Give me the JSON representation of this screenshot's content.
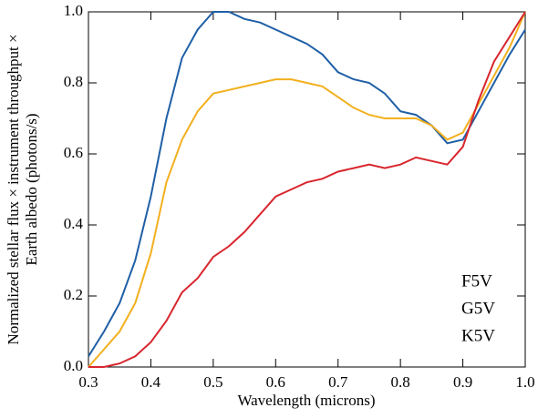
{
  "chart_data": {
    "type": "line",
    "xlabel": "Wavelength (microns)",
    "ylabel": [
      "Normalized stellar flux × instrument throughput ×",
      "Earth albedo (photons/s)"
    ],
    "x": [
      0.3,
      0.325,
      0.35,
      0.375,
      0.4,
      0.425,
      0.45,
      0.475,
      0.5,
      0.525,
      0.55,
      0.575,
      0.6,
      0.625,
      0.65,
      0.675,
      0.7,
      0.725,
      0.75,
      0.775,
      0.8,
      0.825,
      0.85,
      0.875,
      0.9,
      0.925,
      0.95,
      0.975,
      1.0
    ],
    "series": [
      {
        "name": "F5V",
        "color": "#1f5fa6",
        "values": [
          0.03,
          0.1,
          0.18,
          0.3,
          0.48,
          0.7,
          0.87,
          0.95,
          1.0,
          1.0,
          0.98,
          0.97,
          0.95,
          0.93,
          0.91,
          0.88,
          0.83,
          0.81,
          0.8,
          0.77,
          0.72,
          0.71,
          0.68,
          0.63,
          0.64,
          0.72,
          0.8,
          0.88,
          0.95
        ]
      },
      {
        "name": "G5V",
        "color": "#f2b01e",
        "values": [
          0.0,
          0.05,
          0.1,
          0.18,
          0.32,
          0.52,
          0.64,
          0.72,
          0.77,
          0.78,
          0.79,
          0.8,
          0.81,
          0.81,
          0.8,
          0.79,
          0.76,
          0.73,
          0.71,
          0.7,
          0.7,
          0.7,
          0.68,
          0.64,
          0.66,
          0.74,
          0.82,
          0.9,
          1.0
        ]
      },
      {
        "name": "K5V",
        "color": "#d8262e",
        "values": [
          0.0,
          0.0,
          0.01,
          0.03,
          0.07,
          0.13,
          0.21,
          0.25,
          0.31,
          0.34,
          0.38,
          0.43,
          0.48,
          0.5,
          0.52,
          0.53,
          0.55,
          0.56,
          0.57,
          0.56,
          0.57,
          0.59,
          0.58,
          0.57,
          0.62,
          0.75,
          0.86,
          0.93,
          1.0
        ]
      }
    ],
    "xlim": [
      0.3,
      1.0
    ],
    "xticks": [
      0.3,
      0.4,
      0.5,
      0.6,
      0.7,
      0.8,
      0.9,
      {
        "value": 1,
        "label": "1.0"
      }
    ],
    "ylim": [
      0,
      1.0
    ],
    "yticks": [
      {
        "value": 0,
        "label": "0.0"
      },
      0.2,
      0.4,
      0.6,
      0.8,
      {
        "value": 1,
        "label": "1.0"
      }
    ],
    "legend": "lower-right"
  }
}
